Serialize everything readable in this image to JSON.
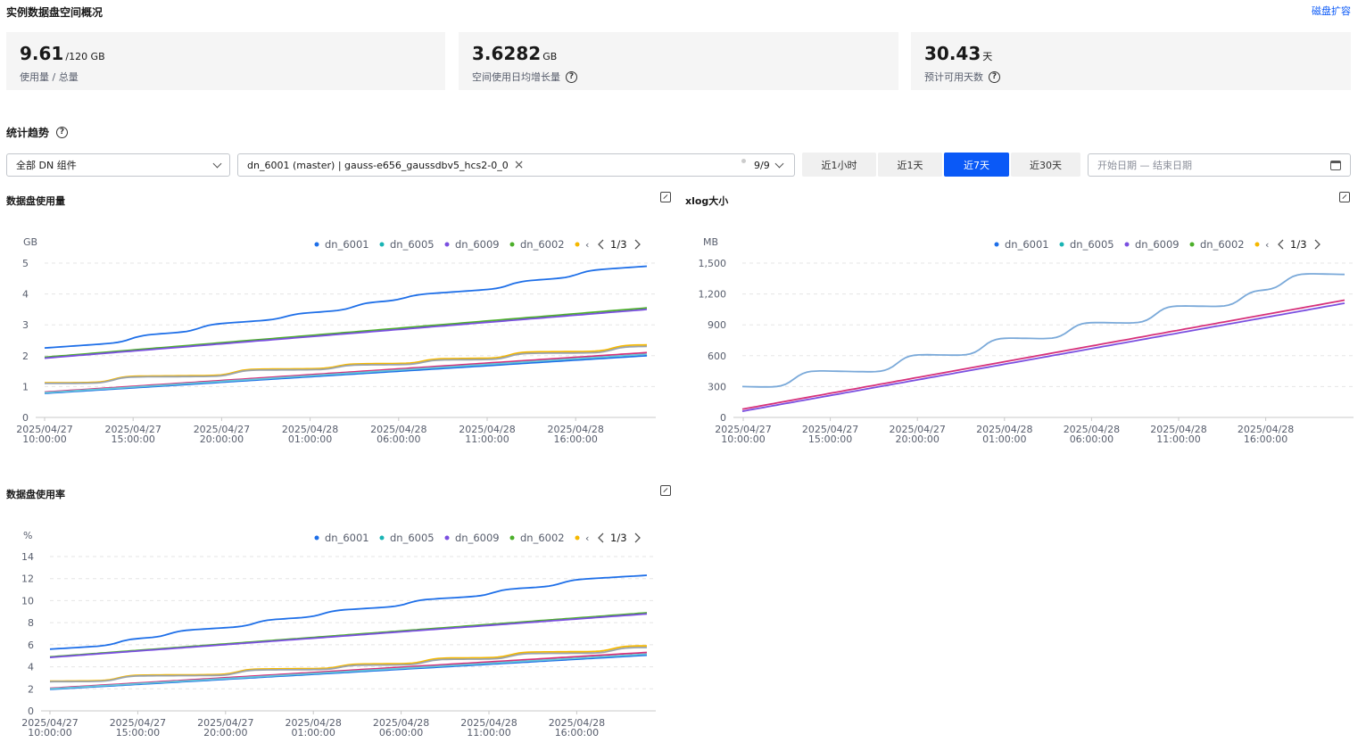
{
  "header": {
    "title": "实例数据盘空间概况",
    "expand_link": "磁盘扩容"
  },
  "cards": [
    {
      "value": "9.61",
      "unit": "/120 GB",
      "label": "使用量 / 总量",
      "has_help": false
    },
    {
      "value": "3.6282",
      "unit": "GB",
      "label": "空间使用日均增长量",
      "has_help": true
    },
    {
      "value": "30.43",
      "unit": "天",
      "label": "预计可用天数",
      "has_help": true
    }
  ],
  "trend": {
    "title": "统计趋势",
    "component_select": "全部 DN 组件",
    "instance_tag": "dn_6001 (master) | gauss-e656_gaussdbv5_hcs2-0_0",
    "instance_count": "9/9",
    "time_buttons": [
      "近1小时",
      "近1天",
      "近7天",
      "近30天"
    ],
    "active_time": 2,
    "date_range_placeholder": "开始日期 — 结束日期"
  },
  "colors": {
    "accent": "#0a59f7",
    "dn_6001": "#1e6fe8",
    "dn_6005": "#19b4b4",
    "dn_6009": "#7a4fe0",
    "dn_6002": "#4caf2a",
    "dn_5": "#f5b800",
    "grey_blue": "#7aa9d9",
    "grey_line": "#9aa3ad",
    "magenta": "#d6307a",
    "teal_light": "#66c7d9"
  },
  "legend": {
    "items": [
      "dn_6001",
      "dn_6005",
      "dn_6009",
      "dn_6002"
    ],
    "page": "1/3"
  },
  "x_ticks": [
    [
      "2025/04/27",
      "10:00:00"
    ],
    [
      "2025/04/27",
      "15:00:00"
    ],
    [
      "2025/04/27",
      "20:00:00"
    ],
    [
      "2025/04/28",
      "01:00:00"
    ],
    [
      "2025/04/28",
      "06:00:00"
    ],
    [
      "2025/04/28",
      "11:00:00"
    ],
    [
      "2025/04/28",
      "16:00:00"
    ]
  ],
  "chart_data": [
    {
      "type": "line",
      "title": "数据盘使用量",
      "ylabel": "GB",
      "yticks": [
        "0",
        "1",
        "2",
        "3",
        "4",
        "5"
      ],
      "ylim": [
        0,
        5
      ],
      "x_hours": [
        0,
        35
      ],
      "series": [
        {
          "name": "dn_6001",
          "color_key": "dn_6001",
          "start": 2.25,
          "end": 4.9,
          "steps": [
            [
              5,
              0.2
            ],
            [
              9,
              0.2
            ],
            [
              14,
              0.15
            ],
            [
              18,
              0.2
            ],
            [
              21,
              0.15
            ],
            [
              27,
              0.2
            ],
            [
              31,
              0.2
            ]
          ]
        },
        {
          "name": "dn_6002",
          "color_key": "dn_6002",
          "start": 1.95,
          "end": 3.55,
          "steps": []
        },
        {
          "name": "dn_6009",
          "color_key": "dn_6009",
          "start": 1.92,
          "end": 3.5,
          "steps": []
        },
        {
          "color_key": "dn_5",
          "start": 1.12,
          "end": 2.35,
          "steps": [
            [
              4,
              0.2
            ],
            [
              11,
              0.2
            ],
            [
              17,
              0.15
            ],
            [
              22,
              0.15
            ],
            [
              27,
              0.2
            ],
            [
              33,
              0.2
            ]
          ]
        },
        {
          "color_key": "grey_line",
          "start": 1.1,
          "end": 2.3,
          "steps": [
            [
              4,
              0.2
            ],
            [
              11,
              0.2
            ],
            [
              17,
              0.15
            ],
            [
              22,
              0.15
            ],
            [
              27,
              0.2
            ],
            [
              33,
              0.2
            ]
          ]
        },
        {
          "color_key": "magenta",
          "start": 0.82,
          "end": 2.1,
          "steps": []
        },
        {
          "color_key": "dn_6001",
          "start": 0.78,
          "end": 2.0,
          "steps": []
        },
        {
          "color_key": "teal_light",
          "start": 0.8,
          "end": 2.05,
          "steps": []
        }
      ]
    },
    {
      "type": "line",
      "title": "xlog大小",
      "ylabel": "MB",
      "yticks": [
        "0",
        "300",
        "600",
        "900",
        "1,200",
        "1,500"
      ],
      "ylim": [
        0,
        1500
      ],
      "x_hours": [
        0,
        35
      ],
      "series": [
        {
          "color_key": "grey_blue",
          "start": 300,
          "end": 1390,
          "steps": [
            [
              3,
              170
            ],
            [
              9,
              180
            ],
            [
              14,
              180
            ],
            [
              19,
              170
            ],
            [
              24,
              180
            ],
            [
              29,
              170
            ],
            [
              31.5,
              170
            ]
          ]
        },
        {
          "color_key": "magenta",
          "start": 80,
          "end": 1140,
          "steps": []
        },
        {
          "color_key": "dn_6009",
          "start": 60,
          "end": 1110,
          "steps": []
        }
      ]
    },
    {
      "type": "line",
      "title": "数据盘使用率",
      "ylabel": "%",
      "yticks": [
        "0",
        "2",
        "4",
        "6",
        "8",
        "10",
        "12",
        "14"
      ],
      "ylim": [
        0,
        14
      ],
      "x_hours": [
        0,
        35
      ],
      "series": [
        {
          "name": "dn_6001",
          "color_key": "dn_6001",
          "start": 5.6,
          "end": 12.3,
          "steps": [
            [
              4,
              0.5
            ],
            [
              7,
              0.5
            ],
            [
              12,
              0.5
            ],
            [
              16,
              0.5
            ],
            [
              21,
              0.5
            ],
            [
              26,
              0.5
            ],
            [
              30,
              0.5
            ]
          ]
        },
        {
          "name": "dn_6002",
          "color_key": "dn_6002",
          "start": 4.9,
          "end": 8.9,
          "steps": []
        },
        {
          "name": "dn_6009",
          "color_key": "dn_6009",
          "start": 4.85,
          "end": 8.8,
          "steps": []
        },
        {
          "color_key": "dn_5",
          "start": 2.7,
          "end": 5.9,
          "steps": [
            [
              4,
              0.5
            ],
            [
              11,
              0.5
            ],
            [
              17,
              0.4
            ],
            [
              22,
              0.5
            ],
            [
              27,
              0.5
            ],
            [
              33,
              0.5
            ]
          ]
        },
        {
          "color_key": "grey_line",
          "start": 2.65,
          "end": 5.75,
          "steps": [
            [
              4,
              0.5
            ],
            [
              11,
              0.5
            ],
            [
              17,
              0.4
            ],
            [
              22,
              0.5
            ],
            [
              27,
              0.5
            ],
            [
              33,
              0.5
            ]
          ]
        },
        {
          "color_key": "magenta",
          "start": 2.05,
          "end": 5.3,
          "steps": []
        },
        {
          "color_key": "dn_6001",
          "start": 1.95,
          "end": 5.05,
          "steps": []
        },
        {
          "color_key": "teal_light",
          "start": 2.0,
          "end": 5.15,
          "steps": []
        }
      ]
    }
  ]
}
